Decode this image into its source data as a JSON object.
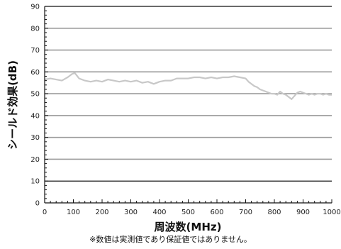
{
  "chart_data": {
    "type": "line",
    "title": "",
    "xlabel": "周波数(MHz)",
    "ylabel": "シールド効果(dB)",
    "xlim": [
      0,
      1000
    ],
    "ylim": [
      0,
      90
    ],
    "x_ticks": [
      0,
      100,
      200,
      300,
      400,
      500,
      600,
      700,
      800,
      900,
      1000
    ],
    "y_ticks": [
      0,
      10,
      20,
      30,
      40,
      50,
      60,
      70,
      80,
      90
    ],
    "grid": "horizontal",
    "legend": "none",
    "series": [
      {
        "color": "#c8c8c8",
        "points": [
          [
            0,
            56.5
          ],
          [
            20,
            57
          ],
          [
            40,
            56.5
          ],
          [
            60,
            56
          ],
          [
            80,
            57.5
          ],
          [
            95,
            59
          ],
          [
            105,
            59.5
          ],
          [
            120,
            57
          ],
          [
            140,
            56
          ],
          [
            160,
            55.5
          ],
          [
            180,
            56
          ],
          [
            200,
            55.5
          ],
          [
            220,
            56.5
          ],
          [
            240,
            56
          ],
          [
            260,
            55.5
          ],
          [
            280,
            56
          ],
          [
            300,
            55.5
          ],
          [
            320,
            56
          ],
          [
            340,
            55
          ],
          [
            360,
            55.5
          ],
          [
            380,
            54.5
          ],
          [
            400,
            55.5
          ],
          [
            420,
            56
          ],
          [
            440,
            56
          ],
          [
            460,
            57
          ],
          [
            480,
            57
          ],
          [
            500,
            57
          ],
          [
            520,
            57.5
          ],
          [
            540,
            57.5
          ],
          [
            560,
            57
          ],
          [
            580,
            57.5
          ],
          [
            600,
            57
          ],
          [
            620,
            57.5
          ],
          [
            640,
            57.5
          ],
          [
            660,
            58
          ],
          [
            680,
            57.5
          ],
          [
            700,
            57
          ],
          [
            710,
            55.5
          ],
          [
            720,
            54.5
          ],
          [
            730,
            53.5
          ],
          [
            740,
            53
          ],
          [
            750,
            52
          ],
          [
            760,
            51.5
          ],
          [
            770,
            51
          ],
          [
            780,
            50.5
          ],
          [
            790,
            50
          ],
          [
            800,
            50
          ],
          [
            810,
            49.5
          ],
          [
            820,
            51
          ],
          [
            830,
            50
          ],
          [
            840,
            49.5
          ],
          [
            850,
            48.5
          ],
          [
            860,
            47.5
          ],
          [
            870,
            49
          ],
          [
            880,
            50.5
          ],
          [
            890,
            51
          ],
          [
            900,
            50.5
          ],
          [
            910,
            50
          ],
          [
            920,
            49.5
          ],
          [
            930,
            50
          ],
          [
            940,
            49.5
          ],
          [
            950,
            50
          ],
          [
            960,
            50
          ],
          [
            970,
            49.5
          ],
          [
            980,
            50
          ],
          [
            990,
            49.5
          ],
          [
            1000,
            49.5
          ]
        ]
      }
    ]
  },
  "note": "※数値は実測値であり保証値ではありません。"
}
